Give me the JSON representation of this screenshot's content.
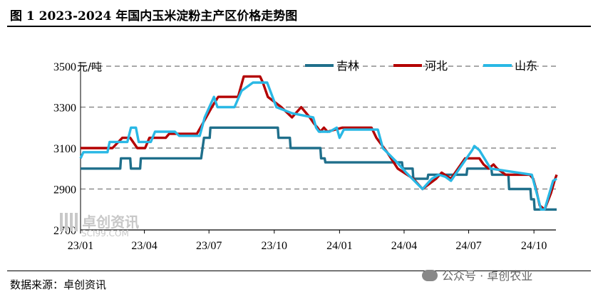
{
  "header": {
    "title": "图 1  2023-2024 年国内玉米淀粉主产区价格走势图"
  },
  "footer": {
    "source": "数据来源：卓创资讯",
    "wechat": "公众号 · 卓创农业"
  },
  "watermark": {
    "name": "卓创资讯",
    "url": "SCI99.COM"
  },
  "chart_data": {
    "type": "line",
    "title": "图 1  2023-2024 年国内玉米淀粉主产区价格走势图",
    "ylabel": "元/吨",
    "ylim": [
      2700,
      3500
    ],
    "yticks": [
      2700,
      2900,
      3100,
      3300,
      3500
    ],
    "xlim": [
      "2023-01-01",
      "2024-11-01"
    ],
    "xticks": [
      "23/01",
      "23/04",
      "23/07",
      "23/10",
      "24/01",
      "24/04",
      "24/07",
      "24/10"
    ],
    "xtick_dates": [
      "2023-01-01",
      "2023-04-01",
      "2023-07-01",
      "2023-10-01",
      "2024-01-01",
      "2024-04-01",
      "2024-07-01",
      "2024-10-01"
    ],
    "grid": "horizontal-dashed",
    "legend_position": "top",
    "series": [
      {
        "name": "吉林",
        "color": "#1f6f8b",
        "points": [
          [
            "2023-01-01",
            3000
          ],
          [
            "2023-02-26",
            3000
          ],
          [
            "2023-02-27",
            3050
          ],
          [
            "2023-03-12",
            3050
          ],
          [
            "2023-03-13",
            3000
          ],
          [
            "2023-03-26",
            3000
          ],
          [
            "2023-03-27",
            3050
          ],
          [
            "2023-06-20",
            3050
          ],
          [
            "2023-06-24",
            3150
          ],
          [
            "2023-07-02",
            3150
          ],
          [
            "2023-07-03",
            3200
          ],
          [
            "2023-10-06",
            3200
          ],
          [
            "2023-10-07",
            3150
          ],
          [
            "2023-10-23",
            3150
          ],
          [
            "2023-10-24",
            3100
          ],
          [
            "2023-12-05",
            3100
          ],
          [
            "2023-12-06",
            3050
          ],
          [
            "2023-12-11",
            3050
          ],
          [
            "2023-12-12",
            3030
          ],
          [
            "2024-03-29",
            3030
          ],
          [
            "2024-03-30",
            3000
          ],
          [
            "2024-04-13",
            3000
          ],
          [
            "2024-04-14",
            2950
          ],
          [
            "2024-05-04",
            2950
          ],
          [
            "2024-05-05",
            2970
          ],
          [
            "2024-06-28",
            2970
          ],
          [
            "2024-06-29",
            3000
          ],
          [
            "2024-08-02",
            3000
          ],
          [
            "2024-08-03",
            2970
          ],
          [
            "2024-08-26",
            2970
          ],
          [
            "2024-08-27",
            2900
          ],
          [
            "2024-09-26",
            2900
          ],
          [
            "2024-09-27",
            2850
          ],
          [
            "2024-10-01",
            2850
          ],
          [
            "2024-10-02",
            2800
          ],
          [
            "2024-11-02",
            2800
          ]
        ]
      },
      {
        "name": "河北",
        "color": "#b30000",
        "points": [
          [
            "2023-01-01",
            3100
          ],
          [
            "2023-02-15",
            3100
          ],
          [
            "2023-03-01",
            3150
          ],
          [
            "2023-03-12",
            3150
          ],
          [
            "2023-03-22",
            3100
          ],
          [
            "2023-04-02",
            3100
          ],
          [
            "2023-04-08",
            3150
          ],
          [
            "2023-05-01",
            3150
          ],
          [
            "2023-05-06",
            3170
          ],
          [
            "2023-06-14",
            3170
          ],
          [
            "2023-06-19",
            3200
          ],
          [
            "2023-07-05",
            3300
          ],
          [
            "2023-07-14",
            3350
          ],
          [
            "2023-08-11",
            3350
          ],
          [
            "2023-08-19",
            3450
          ],
          [
            "2023-09-11",
            3450
          ],
          [
            "2023-09-15",
            3420
          ],
          [
            "2023-09-22",
            3350
          ],
          [
            "2023-10-11",
            3300
          ],
          [
            "2023-10-26",
            3250
          ],
          [
            "2023-11-08",
            3300
          ],
          [
            "2023-11-20",
            3250
          ],
          [
            "2023-11-26",
            3220
          ],
          [
            "2023-12-01",
            3200
          ],
          [
            "2023-12-05",
            3180
          ],
          [
            "2023-12-10",
            3200
          ],
          [
            "2023-12-15",
            3180
          ],
          [
            "2024-01-05",
            3200
          ],
          [
            "2024-02-15",
            3200
          ],
          [
            "2024-02-22",
            3150
          ],
          [
            "2024-03-08",
            3080
          ],
          [
            "2024-03-23",
            3000
          ],
          [
            "2024-04-14",
            2950
          ],
          [
            "2024-04-27",
            2900
          ],
          [
            "2024-05-16",
            2950
          ],
          [
            "2024-05-24",
            2980
          ],
          [
            "2024-06-06",
            2950
          ],
          [
            "2024-06-26",
            3050
          ],
          [
            "2024-07-16",
            3050
          ],
          [
            "2024-07-22",
            3020
          ],
          [
            "2024-07-29",
            3000
          ],
          [
            "2024-08-05",
            3020
          ],
          [
            "2024-08-10",
            3000
          ],
          [
            "2024-08-22",
            2970
          ],
          [
            "2024-09-25",
            2970
          ],
          [
            "2024-09-30",
            2950
          ],
          [
            "2024-10-04",
            2900
          ],
          [
            "2024-10-09",
            2820
          ],
          [
            "2024-10-16",
            2800
          ],
          [
            "2024-10-25",
            2880
          ],
          [
            "2024-10-30",
            2940
          ],
          [
            "2024-11-02",
            2970
          ]
        ]
      },
      {
        "name": "山东",
        "color": "#29b8e5",
        "points": [
          [
            "2023-01-01",
            3050
          ],
          [
            "2023-01-05",
            3080
          ],
          [
            "2023-02-08",
            3080
          ],
          [
            "2023-02-11",
            3130
          ],
          [
            "2023-03-08",
            3130
          ],
          [
            "2023-03-13",
            3200
          ],
          [
            "2023-03-20",
            3200
          ],
          [
            "2023-03-24",
            3130
          ],
          [
            "2023-04-10",
            3130
          ],
          [
            "2023-04-16",
            3180
          ],
          [
            "2023-05-14",
            3180
          ],
          [
            "2023-05-20",
            3160
          ],
          [
            "2023-06-18",
            3160
          ],
          [
            "2023-06-25",
            3250
          ],
          [
            "2023-07-08",
            3350
          ],
          [
            "2023-07-13",
            3300
          ],
          [
            "2023-08-06",
            3300
          ],
          [
            "2023-08-16",
            3380
          ],
          [
            "2023-09-01",
            3420
          ],
          [
            "2023-09-21",
            3420
          ],
          [
            "2023-10-04",
            3300
          ],
          [
            "2023-10-26",
            3270
          ],
          [
            "2023-11-25",
            3250
          ],
          [
            "2023-11-29",
            3200
          ],
          [
            "2023-12-03",
            3180
          ],
          [
            "2023-12-18",
            3180
          ],
          [
            "2023-12-28",
            3200
          ],
          [
            "2024-01-01",
            3150
          ],
          [
            "2024-01-04",
            3170
          ],
          [
            "2024-01-07",
            3190
          ],
          [
            "2024-02-24",
            3190
          ],
          [
            "2024-03-02",
            3100
          ],
          [
            "2024-03-22",
            3030
          ],
          [
            "2024-04-04",
            2980
          ],
          [
            "2024-04-27",
            2900
          ],
          [
            "2024-05-10",
            2950
          ],
          [
            "2024-05-20",
            2970
          ],
          [
            "2024-05-29",
            2960
          ],
          [
            "2024-06-06",
            2940
          ],
          [
            "2024-07-06",
            3090
          ],
          [
            "2024-07-09",
            3110
          ],
          [
            "2024-07-16",
            3090
          ],
          [
            "2024-08-01",
            3000
          ],
          [
            "2024-09-28",
            2970
          ],
          [
            "2024-10-11",
            2800
          ],
          [
            "2024-10-16",
            2800
          ],
          [
            "2024-10-28",
            2940
          ],
          [
            "2024-11-02",
            2950
          ]
        ]
      }
    ]
  }
}
